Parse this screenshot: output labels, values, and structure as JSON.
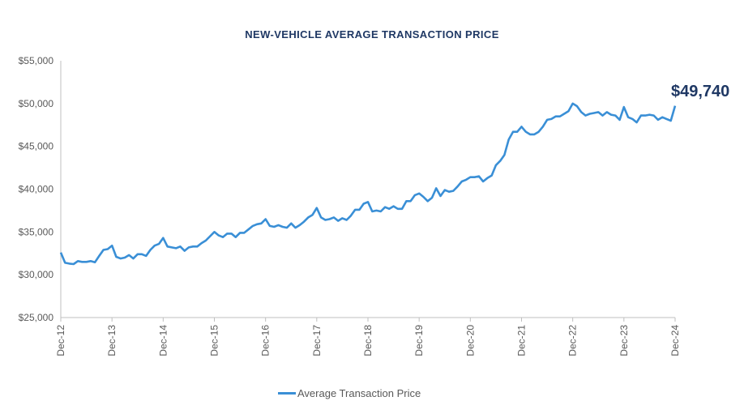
{
  "colors": {
    "title": "#1f3864",
    "line": "#3a8fd6",
    "axis": "#bfbfbf",
    "callout": "#1f3864"
  },
  "chart_data": {
    "type": "line",
    "title": "NEW-VEHICLE AVERAGE TRANSACTION PRICE",
    "xlabel": "",
    "ylabel": "",
    "ylim": [
      25000,
      55000
    ],
    "y_ticks": [
      "$25,000",
      "$30,000",
      "$35,000",
      "$40,000",
      "$45,000",
      "$50,000",
      "$55,000"
    ],
    "x_ticks": [
      "Dec-12",
      "Dec-13",
      "Dec-14",
      "Dec-15",
      "Dec-16",
      "Dec-17",
      "Dec-18",
      "Dec-19",
      "Dec-20",
      "Dec-21",
      "Dec-22",
      "Dec-23",
      "Dec-24"
    ],
    "legend": "bottom",
    "grid": false,
    "series": [
      {
        "name": "Average Transaction Price",
        "values": [
          32600,
          31400,
          31300,
          31250,
          31600,
          31500,
          31500,
          31600,
          31450,
          32200,
          32900,
          33000,
          33400,
          32100,
          31900,
          32000,
          32300,
          31900,
          32400,
          32400,
          32200,
          32900,
          33400,
          33600,
          34300,
          33300,
          33200,
          33100,
          33300,
          32800,
          33200,
          33300,
          33300,
          33700,
          34000,
          34500,
          35000,
          34600,
          34400,
          34800,
          34800,
          34400,
          34900,
          34900,
          35300,
          35700,
          35900,
          36000,
          36500,
          35700,
          35600,
          35800,
          35600,
          35500,
          36000,
          35500,
          35800,
          36200,
          36700,
          37000,
          37800,
          36700,
          36400,
          36500,
          36700,
          36300,
          36600,
          36400,
          36900,
          37600,
          37600,
          38300,
          38500,
          37400,
          37500,
          37400,
          37900,
          37700,
          38000,
          37700,
          37700,
          38600,
          38600,
          39300,
          39500,
          39100,
          38600,
          39000,
          40100,
          39200,
          39900,
          39700,
          39800,
          40300,
          40900,
          41100,
          41400,
          41400,
          41500,
          40900,
          41300,
          41600,
          42800,
          43300,
          44000,
          45800,
          46700,
          46700,
          47300,
          46700,
          46400,
          46400,
          46700,
          47300,
          48100,
          48200,
          48500,
          48500,
          48800,
          49100,
          50000,
          49700,
          49000,
          48600,
          48800,
          48900,
          49000,
          48600,
          49000,
          48700,
          48600,
          48100,
          49600,
          48400,
          48200,
          47800,
          48600,
          48600,
          48700,
          48600,
          48100,
          48400,
          48200,
          48000,
          49740
        ]
      }
    ],
    "callout": "$49,740"
  }
}
